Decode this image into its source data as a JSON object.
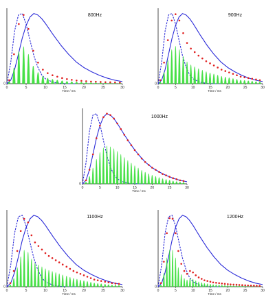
{
  "figure": {
    "colors": {
      "solid_envelope": "#2a2ad8",
      "dashed_envelope": "#2a2ad8",
      "stems": "#33dd33",
      "markers": "#e02020",
      "axes": "#000000"
    }
  },
  "chart_data": [
    {
      "type": "line",
      "title": "800Hz",
      "xlabel": "Time / ms",
      "ylabel": "",
      "xlim": [
        0,
        30
      ],
      "xticks": [
        0,
        5,
        10,
        15,
        20,
        25,
        30
      ],
      "yticks": [
        0
      ],
      "ylim": [
        0,
        1
      ],
      "pulse_period_ms": 1.25,
      "series": [
        {
          "style": "solid",
          "x": [
            0,
            1,
            2,
            3,
            4,
            5,
            6,
            7,
            8,
            9,
            10,
            11,
            12,
            14,
            16,
            18,
            20,
            22,
            24,
            26,
            28,
            30
          ],
          "y": [
            0,
            0.05,
            0.2,
            0.42,
            0.65,
            0.83,
            0.95,
            1.0,
            0.98,
            0.93,
            0.86,
            0.78,
            0.7,
            0.55,
            0.42,
            0.31,
            0.23,
            0.17,
            0.12,
            0.08,
            0.05,
            0.03
          ]
        },
        {
          "style": "dashed",
          "x": [
            0,
            1,
            2,
            3,
            4,
            5,
            6,
            7,
            8,
            9,
            10,
            12,
            14,
            16,
            18
          ],
          "y": [
            0,
            0.3,
            0.75,
            0.98,
            1.0,
            0.85,
            0.62,
            0.4,
            0.24,
            0.13,
            0.07,
            0.02,
            0.005,
            0,
            0
          ]
        },
        {
          "style": "stems",
          "x": [
            0.6,
            1.85,
            3.1,
            4.35,
            5.6,
            6.85,
            8.1,
            9.35,
            10.6,
            11.85,
            13.1,
            14.35,
            15.6,
            16.85,
            18.1,
            19.35,
            20.6,
            21.85,
            23.1,
            24.35,
            25.6,
            26.85,
            28.1,
            29.35
          ],
          "y": [
            0.05,
            0.42,
            0.85,
            0.98,
            0.78,
            0.47,
            0.3,
            0.2,
            0.15,
            0.12,
            0.1,
            0.08,
            0.065,
            0.055,
            0.045,
            0.04,
            0.035,
            0.03,
            0.028,
            0.025,
            0.022,
            0.02,
            0.018,
            0.016
          ]
        }
      ]
    },
    {
      "type": "line",
      "title": "900Hz",
      "xlabel": "Time / ms",
      "ylabel": "",
      "xlim": [
        0,
        30
      ],
      "xticks": [
        0,
        5,
        10,
        15,
        20,
        25,
        30
      ],
      "yticks": [
        0
      ],
      "ylim": [
        0,
        1
      ],
      "pulse_period_ms": 1.111,
      "series": [
        {
          "style": "solid",
          "x": [
            0,
            1,
            2,
            3,
            4,
            5,
            6,
            7,
            8,
            9,
            10,
            11,
            12,
            14,
            16,
            18,
            20,
            22,
            24,
            26,
            28,
            30
          ],
          "y": [
            0,
            0.05,
            0.2,
            0.42,
            0.65,
            0.83,
            0.95,
            1.0,
            0.98,
            0.93,
            0.86,
            0.78,
            0.7,
            0.55,
            0.42,
            0.31,
            0.23,
            0.17,
            0.12,
            0.08,
            0.05,
            0.03
          ]
        },
        {
          "style": "dashed",
          "x": [
            0,
            1,
            2,
            3,
            4,
            5,
            6,
            7,
            8,
            9,
            10,
            12,
            14,
            16,
            18
          ],
          "y": [
            0,
            0.3,
            0.75,
            0.98,
            1.0,
            0.85,
            0.62,
            0.4,
            0.24,
            0.13,
            0.07,
            0.02,
            0.005,
            0,
            0
          ]
        },
        {
          "style": "stems",
          "x": [
            0.6,
            1.7,
            2.8,
            3.9,
            5.0,
            6.1,
            7.2,
            8.3,
            9.4,
            10.5,
            11.6,
            12.7,
            13.8,
            14.9,
            16.0,
            17.1,
            18.2,
            19.3,
            20.4,
            21.5,
            22.6,
            23.7,
            24.8,
            25.9,
            27.0,
            28.1,
            29.2
          ],
          "y": [
            0.05,
            0.3,
            0.62,
            0.9,
            0.99,
            0.9,
            0.72,
            0.58,
            0.5,
            0.45,
            0.4,
            0.36,
            0.32,
            0.29,
            0.26,
            0.23,
            0.2,
            0.18,
            0.16,
            0.14,
            0.12,
            0.1,
            0.09,
            0.08,
            0.07,
            0.06,
            0.05
          ]
        }
      ]
    },
    {
      "type": "line",
      "title": "1000Hz",
      "xlabel": "Time / ms",
      "ylabel": "",
      "xlim": [
        0,
        30
      ],
      "xticks": [
        0,
        5,
        10,
        15,
        20,
        25,
        30
      ],
      "yticks": [
        0
      ],
      "ylim": [
        0,
        1
      ],
      "pulse_period_ms": 1.0,
      "series": [
        {
          "style": "solid",
          "x": [
            0,
            1,
            2,
            3,
            4,
            5,
            6,
            7,
            8,
            9,
            10,
            11,
            12,
            14,
            16,
            18,
            20,
            22,
            24,
            26,
            28,
            30
          ],
          "y": [
            0,
            0.05,
            0.2,
            0.42,
            0.65,
            0.83,
            0.95,
            1.0,
            0.98,
            0.93,
            0.86,
            0.78,
            0.7,
            0.55,
            0.42,
            0.31,
            0.23,
            0.17,
            0.12,
            0.08,
            0.05,
            0.03
          ]
        },
        {
          "style": "dashed",
          "x": [
            0,
            1,
            2,
            3,
            4,
            5,
            6,
            7,
            8,
            9,
            10,
            12,
            14,
            16,
            18
          ],
          "y": [
            0,
            0.3,
            0.75,
            0.98,
            1.0,
            0.85,
            0.62,
            0.4,
            0.24,
            0.13,
            0.07,
            0.02,
            0.005,
            0,
            0
          ]
        },
        {
          "style": "stems",
          "x": [
            1,
            2,
            3,
            4,
            5,
            6,
            7,
            8,
            9,
            10,
            11,
            12,
            13,
            14,
            15,
            16,
            17,
            18,
            19,
            20,
            21,
            22,
            23,
            24,
            25,
            26,
            27,
            28,
            29
          ],
          "y": [
            0.05,
            0.2,
            0.42,
            0.65,
            0.83,
            0.95,
            1.0,
            0.98,
            0.93,
            0.86,
            0.78,
            0.7,
            0.62,
            0.55,
            0.48,
            0.42,
            0.36,
            0.31,
            0.27,
            0.23,
            0.2,
            0.17,
            0.14,
            0.12,
            0.1,
            0.08,
            0.065,
            0.05,
            0.04
          ]
        }
      ]
    },
    {
      "type": "line",
      "title": "1100Hz",
      "xlabel": "Time / ms",
      "ylabel": "",
      "xlim": [
        0,
        30
      ],
      "xticks": [
        0,
        5,
        10,
        15,
        20,
        25,
        30
      ],
      "yticks": [
        0
      ],
      "ylim": [
        0,
        1
      ],
      "pulse_period_ms": 0.909,
      "series": [
        {
          "style": "solid",
          "x": [
            0,
            1,
            2,
            3,
            4,
            5,
            6,
            7,
            8,
            9,
            10,
            11,
            12,
            14,
            16,
            18,
            20,
            22,
            24,
            26,
            28,
            30
          ],
          "y": [
            0,
            0.05,
            0.2,
            0.42,
            0.65,
            0.83,
            0.95,
            1.0,
            0.98,
            0.93,
            0.86,
            0.78,
            0.7,
            0.55,
            0.42,
            0.31,
            0.23,
            0.17,
            0.12,
            0.08,
            0.05,
            0.03
          ]
        },
        {
          "style": "dashed",
          "x": [
            0,
            1,
            2,
            3,
            4,
            5,
            6,
            7,
            8,
            9,
            10,
            12,
            14,
            16,
            18
          ],
          "y": [
            0,
            0.3,
            0.75,
            0.98,
            1.0,
            0.85,
            0.62,
            0.4,
            0.24,
            0.13,
            0.07,
            0.02,
            0.005,
            0,
            0
          ]
        },
        {
          "style": "stems",
          "x": [
            0.9,
            1.8,
            2.7,
            3.6,
            4.5,
            5.5,
            6.4,
            7.3,
            8.2,
            9.1,
            10.0,
            10.9,
            11.8,
            12.7,
            13.6,
            14.5,
            15.5,
            16.4,
            17.3,
            18.2,
            19.1,
            20.0,
            20.9,
            21.8,
            22.7,
            23.6,
            24.5,
            25.5,
            26.4,
            27.3,
            28.2,
            29.1
          ],
          "y": [
            0.05,
            0.22,
            0.5,
            0.78,
            0.95,
            0.9,
            0.72,
            0.62,
            0.57,
            0.52,
            0.47,
            0.43,
            0.4,
            0.37,
            0.34,
            0.31,
            0.28,
            0.25,
            0.22,
            0.2,
            0.18,
            0.16,
            0.14,
            0.12,
            0.1,
            0.09,
            0.08,
            0.07,
            0.06,
            0.05,
            0.045,
            0.04
          ]
        }
      ]
    },
    {
      "type": "line",
      "title": "1200Hz",
      "xlabel": "Time / ms",
      "ylabel": "",
      "xlim": [
        0,
        30
      ],
      "xticks": [
        0,
        5,
        10,
        15,
        20,
        25,
        30
      ],
      "yticks": [
        0
      ],
      "ylim": [
        0,
        1
      ],
      "pulse_period_ms": 0.833,
      "series": [
        {
          "style": "solid",
          "x": [
            0,
            1,
            2,
            3,
            4,
            5,
            6,
            7,
            8,
            9,
            10,
            11,
            12,
            14,
            16,
            18,
            20,
            22,
            24,
            26,
            28,
            30
          ],
          "y": [
            0,
            0.05,
            0.2,
            0.42,
            0.65,
            0.83,
            0.95,
            1.0,
            0.98,
            0.93,
            0.86,
            0.78,
            0.7,
            0.55,
            0.42,
            0.31,
            0.23,
            0.17,
            0.12,
            0.08,
            0.05,
            0.03
          ]
        },
        {
          "style": "dashed",
          "x": [
            0,
            1,
            2,
            3,
            4,
            5,
            6,
            7,
            8,
            9,
            10,
            12,
            14,
            16,
            18
          ],
          "y": [
            0,
            0.3,
            0.75,
            0.98,
            1.0,
            0.85,
            0.62,
            0.4,
            0.24,
            0.13,
            0.07,
            0.02,
            0.005,
            0,
            0
          ]
        },
        {
          "style": "stems",
          "x": [
            0.8,
            1.65,
            2.5,
            3.3,
            4.15,
            5.0,
            5.8,
            6.65,
            7.5,
            8.3,
            9.15,
            10.0,
            10.8,
            11.65,
            12.5,
            13.3,
            14.15,
            15.0,
            15.8,
            16.65,
            17.5,
            18.3,
            19.15,
            20.0,
            20.8,
            21.65,
            22.5,
            23.3,
            24.15,
            25.0,
            25.8,
            26.65,
            27.5,
            28.3,
            29.15
          ],
          "y": [
            0.05,
            0.35,
            0.75,
            0.96,
            0.95,
            0.75,
            0.5,
            0.32,
            0.22,
            0.18,
            0.22,
            0.2,
            0.16,
            0.13,
            0.11,
            0.09,
            0.08,
            0.07,
            0.06,
            0.055,
            0.05,
            0.045,
            0.04,
            0.035,
            0.032,
            0.03,
            0.028,
            0.025,
            0.022,
            0.02,
            0.018,
            0.016,
            0.015,
            0.013,
            0.012
          ]
        }
      ]
    }
  ]
}
